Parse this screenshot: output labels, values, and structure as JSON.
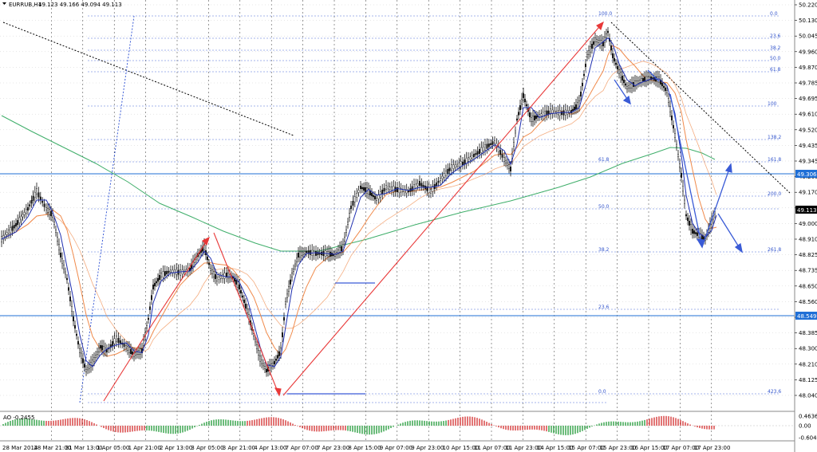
{
  "header": {
    "symbol": "EURRUB,H1",
    "ohlc": "49.123 49.166 49.094 49.113"
  },
  "ao_label": "AO -0.2455",
  "price_scale": [
    "50.220",
    "50.130",
    "50.045",
    "49.960",
    "49.870",
    "49.785",
    "49.695",
    "49.610",
    "49.520",
    "49.435",
    "49.345",
    "49.260",
    "49.170",
    "49.085",
    "49.000",
    "48.910",
    "48.825",
    "48.735",
    "48.650",
    "48.560",
    "48.475",
    "48.385",
    "48.300",
    "48.210",
    "48.125",
    "48.040"
  ],
  "ao_scale": [
    "0.4636",
    "0.00",
    "-0.6046"
  ],
  "markers": {
    "h_line_1": {
      "value": "49.306",
      "color": "#1f6fd6"
    },
    "h_line_2": {
      "value": "48.549",
      "color": "#1f6fd6"
    },
    "current": {
      "value": "49.113",
      "color": "#000000"
    }
  },
  "fib_levels": [
    "100.0",
    "0.0",
    "23.6",
    "38.2",
    "50.0",
    "61.8",
    "100",
    "138.2",
    "161.8",
    "200.0",
    "261.8",
    "50.0",
    "38.2",
    "61.8",
    "23.6",
    "0.0",
    "423.6"
  ],
  "dates": [
    "28 Mar 2014",
    "28 Mar 21:00",
    "31 Mar 13:00",
    "1 Apr 05:00",
    "1 Apr 21:00",
    "2 Apr 13:00",
    "3 Apr 05:00",
    "3 Apr 21:00",
    "4 Apr 13:00",
    "7 Apr 07:00",
    "7 Apr 23:00",
    "8 Apr 15:00",
    "9 Apr 07:00",
    "9 Apr 23:00",
    "10 Apr 15:00",
    "11 Apr 07:00",
    "11 Apr 23:00",
    "14 Apr 15:00",
    "15 Apr 07:00",
    "15 Apr 23:00",
    "16 Apr 15:00",
    "17 Apr 07:00",
    "17 Apr 23:00"
  ],
  "colors": {
    "ma_green": "#3fae6a",
    "ma_orange": "#f08a4b",
    "ma_blue": "#1f2fb0",
    "arrow_red": "#e83838",
    "arrow_blue": "#3a5bd6",
    "ao_up": "#2ea043",
    "ao_down": "#d63a3a"
  }
}
